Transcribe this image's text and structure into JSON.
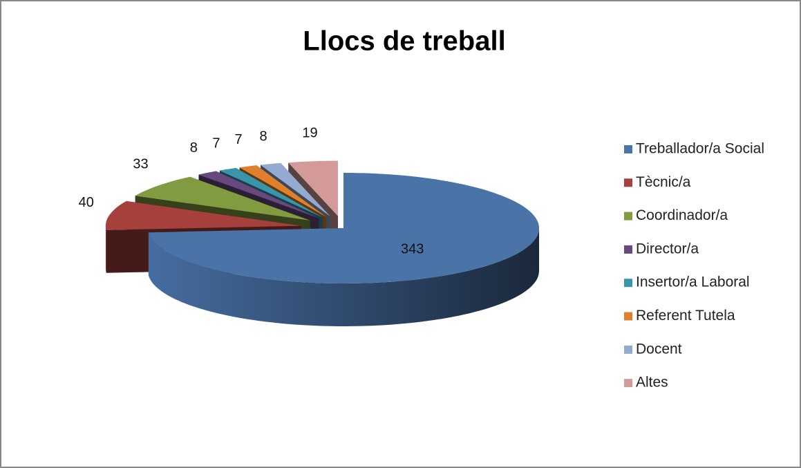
{
  "chart_data": {
    "type": "pie",
    "title": "Llocs de treball",
    "categories": [
      "Treballador/a Social",
      "Tècnic/a",
      "Coordinador/a",
      "Director/a",
      "Insertor/a Laboral",
      "Referent Tutela",
      "Docent",
      "Altes"
    ],
    "values": [
      343,
      40,
      33,
      8,
      7,
      7,
      8,
      19
    ],
    "colors": [
      "#4a73a8",
      "#a5403d",
      "#809b40",
      "#67497f",
      "#3a95ab",
      "#e07f2c",
      "#94aad0",
      "#d49a99"
    ],
    "legend": "right",
    "three_d": true,
    "exploded": true
  }
}
